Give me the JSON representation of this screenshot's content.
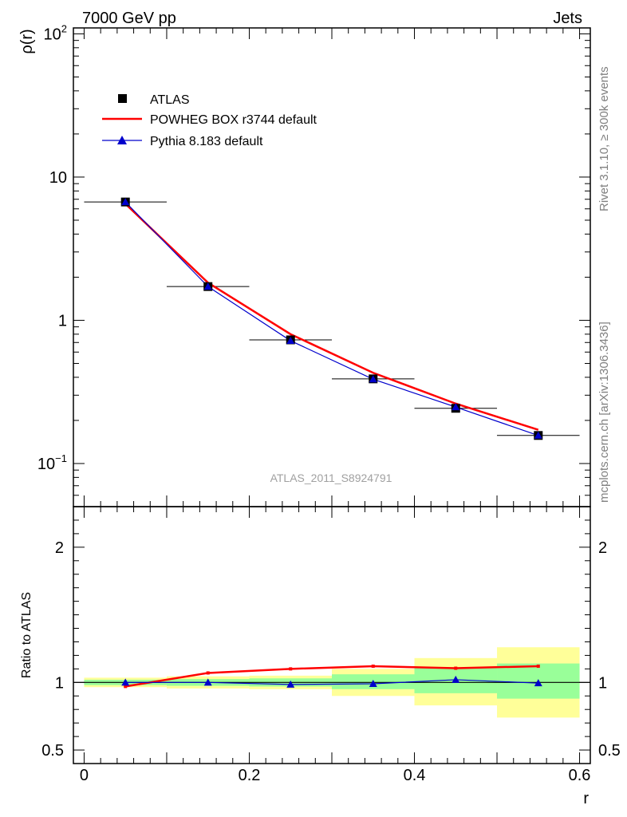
{
  "header": {
    "left_label": "7000 GeV pp",
    "right_label": "Jets"
  },
  "side_labels": {
    "rivet": "Rivet 3.1.10, ≥ 300k events",
    "mcplots": "mcplots.cern.ch [arXiv:1306.3436]"
  },
  "watermark": "ATLAS_2011_S8924791",
  "colors": {
    "data": "#000000",
    "powheg": "#ff0000",
    "pythia": "#0000cc",
    "band_inner": "#99ff99",
    "band_outer": "#ffff99"
  },
  "chart_data": [
    {
      "type": "scatter",
      "title": "",
      "ylabel": "ρ(r)",
      "yscale": "log",
      "ylim": [
        0.05,
        110
      ],
      "xlim": [
        -0.013,
        0.613
      ],
      "ytick_labels": [
        {
          "value": 0.1,
          "base": "10",
          "exp": "−1"
        },
        {
          "value": 1,
          "base": "1",
          "exp": ""
        },
        {
          "value": 10,
          "base": "10",
          "exp": ""
        },
        {
          "value": 100,
          "base": "10",
          "exp": "2"
        }
      ],
      "legend": {
        "placement": "top-left",
        "entries": [
          "ATLAS",
          "POWHEG BOX r3744 default",
          "Pythia 8.183 default"
        ]
      },
      "series": [
        {
          "name": "ATLAS",
          "marker": "square",
          "x": [
            0.05,
            0.15,
            0.25,
            0.35,
            0.45,
            0.55
          ],
          "values": [
            6.7,
            1.72,
            0.73,
            0.39,
            0.243,
            0.157
          ],
          "xerr": 0.05
        },
        {
          "name": "POWHEG BOX r3744 default",
          "marker": "line",
          "x": [
            0.05,
            0.15,
            0.25,
            0.35,
            0.45,
            0.55
          ],
          "values": [
            6.5,
            1.83,
            0.8,
            0.43,
            0.262,
            0.172
          ]
        },
        {
          "name": "Pythia 8.183 default",
          "marker": "triangle",
          "x": [
            0.05,
            0.15,
            0.25,
            0.35,
            0.45,
            0.55
          ],
          "values": [
            6.7,
            1.72,
            0.72,
            0.388,
            0.248,
            0.157
          ]
        }
      ]
    },
    {
      "type": "line",
      "xlabel": "r",
      "ylabel": "Ratio to ATLAS",
      "xlim": [
        -0.013,
        0.613
      ],
      "ylim": [
        0.4,
        2.3
      ],
      "xtick_labels": [
        "0",
        "0.2",
        "0.4",
        "0.6"
      ],
      "xtick_values": [
        0,
        0.2,
        0.4,
        0.6
      ],
      "ytick_labels": [
        "0.5",
        "1",
        "2"
      ],
      "ytick_values": [
        0.5,
        1,
        2
      ],
      "bands": [
        {
          "x0": 0.0,
          "x1": 0.1,
          "inner": [
            0.98,
            1.02
          ],
          "outer": [
            0.965,
            1.035
          ]
        },
        {
          "x0": 0.1,
          "x1": 0.2,
          "inner": [
            0.975,
            1.025
          ],
          "outer": [
            0.955,
            1.045
          ]
        },
        {
          "x0": 0.2,
          "x1": 0.3,
          "inner": [
            0.97,
            1.03
          ],
          "outer": [
            0.95,
            1.05
          ]
        },
        {
          "x0": 0.3,
          "x1": 0.4,
          "inner": [
            0.95,
            1.06
          ],
          "outer": [
            0.9,
            1.1
          ]
        },
        {
          "x0": 0.4,
          "x1": 0.5,
          "inner": [
            0.92,
            1.11
          ],
          "outer": [
            0.83,
            1.18
          ]
        },
        {
          "x0": 0.5,
          "x1": 0.6,
          "inner": [
            0.88,
            1.14
          ],
          "outer": [
            0.74,
            1.26
          ]
        }
      ],
      "series": [
        {
          "name": "POWHEG BOX r3744 default",
          "x": [
            0.05,
            0.15,
            0.25,
            0.35,
            0.45,
            0.55
          ],
          "values": [
            0.97,
            1.07,
            1.1,
            1.12,
            1.105,
            1.12
          ]
        },
        {
          "name": "Pythia 8.183 default",
          "x": [
            0.05,
            0.15,
            0.25,
            0.35,
            0.45,
            0.55
          ],
          "values": [
            1.0,
            1.0,
            0.985,
            0.99,
            1.02,
            0.995
          ]
        }
      ]
    }
  ]
}
